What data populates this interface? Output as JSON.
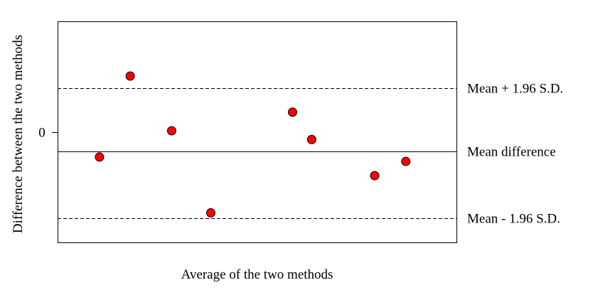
{
  "chart_data": {
    "type": "scatter",
    "title": "",
    "xlabel": "Average of the two methods",
    "ylabel": "Difference between the two methods",
    "x_ticks_shown": false,
    "y_tick_labels": [
      "0"
    ],
    "grid": false,
    "legend": "none",
    "xlim": [
      0,
      100
    ],
    "ylim": [
      -5.05,
      5.05
    ],
    "points": [
      {
        "x": 10.5,
        "y": -1.15
      },
      {
        "x": 18.2,
        "y": 2.55
      },
      {
        "x": 28.6,
        "y": 0.05
      },
      {
        "x": 38.4,
        "y": -3.7
      },
      {
        "x": 58.9,
        "y": 0.9
      },
      {
        "x": 63.7,
        "y": -0.35
      },
      {
        "x": 79.5,
        "y": -2.0
      },
      {
        "x": 87.3,
        "y": -1.35
      }
    ],
    "reference_lines": [
      {
        "label": "Mean + 1.96 S.D.",
        "y": 2.0,
        "style": "dashed"
      },
      {
        "label": "Mean difference",
        "y": -0.9,
        "style": "solid"
      },
      {
        "label": "Mean - 1.96 S.D.",
        "y": -3.95,
        "style": "dashed"
      }
    ],
    "point_color": "#ff0000",
    "point_edge_color": "#000000"
  }
}
